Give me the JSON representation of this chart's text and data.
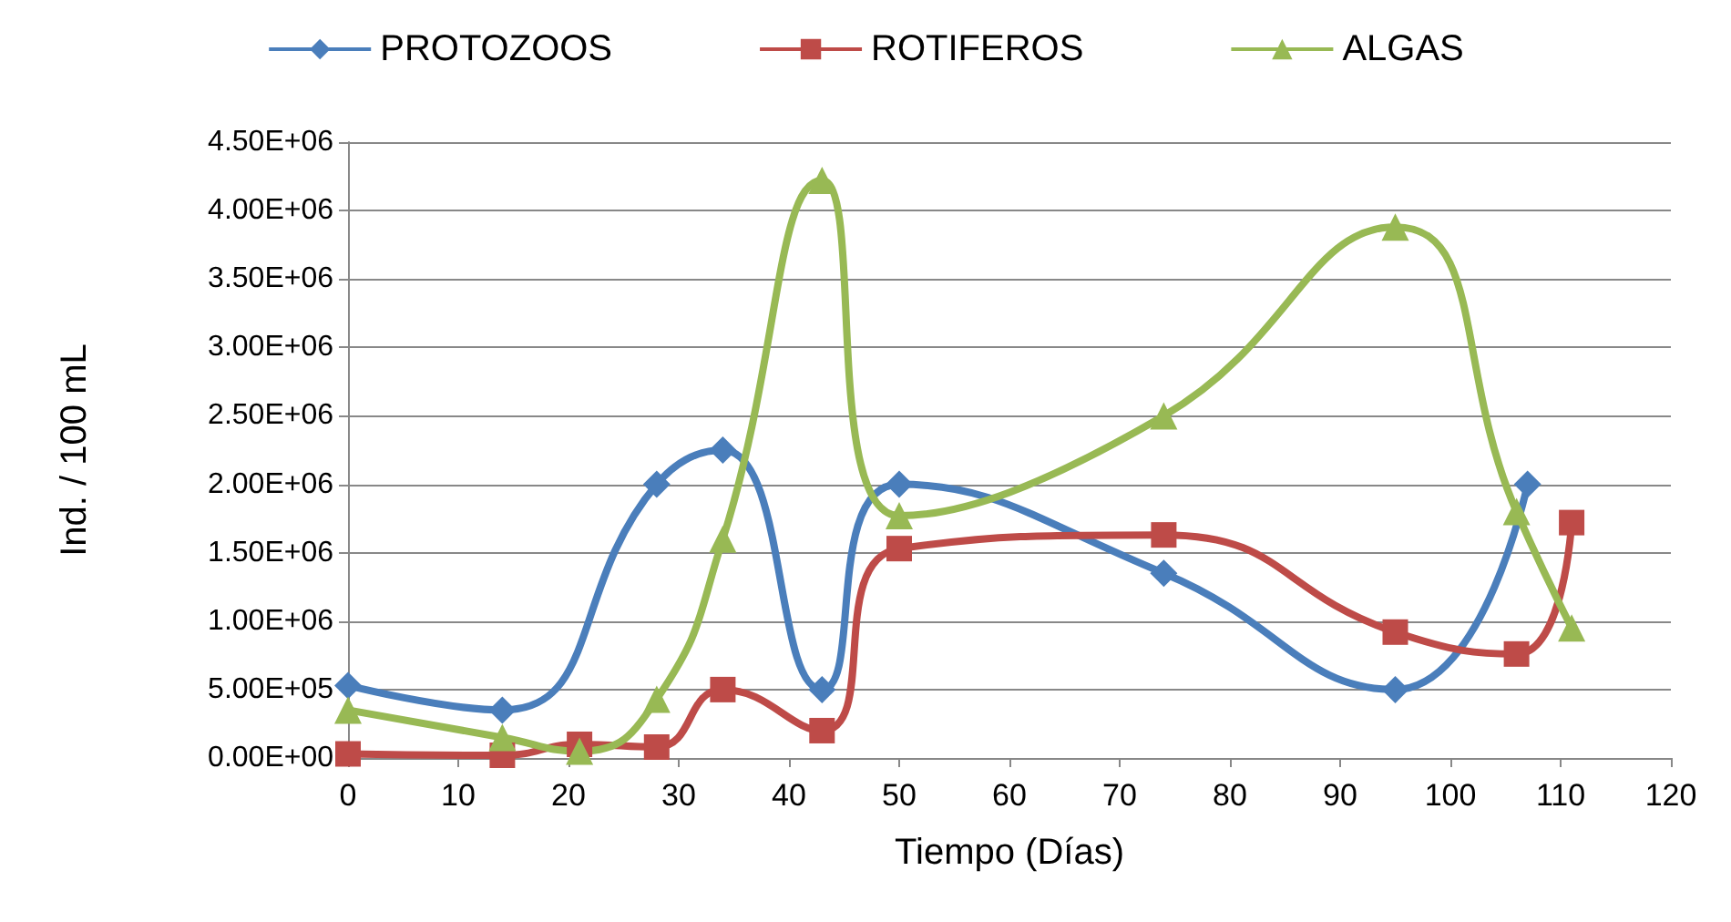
{
  "chart_data": {
    "type": "line",
    "xlabel": "Tiempo (Días)",
    "ylabel": "Ind. / 100 mL",
    "xlim": [
      0,
      120
    ],
    "xticks": [
      0,
      10,
      20,
      30,
      40,
      50,
      60,
      70,
      80,
      90,
      100,
      110,
      120
    ],
    "ylim": [
      0,
      4500000
    ],
    "yticks": [
      {
        "value": 0,
        "label": "0.00E+00"
      },
      {
        "value": 500000,
        "label": "5.00E+05"
      },
      {
        "value": 1000000,
        "label": "1.00E+06"
      },
      {
        "value": 1500000,
        "label": "1.50E+06"
      },
      {
        "value": 2000000,
        "label": "2.00E+06"
      },
      {
        "value": 2500000,
        "label": "2.50E+06"
      },
      {
        "value": 3000000,
        "label": "3.00E+06"
      },
      {
        "value": 3500000,
        "label": "3.50E+06"
      },
      {
        "value": 4000000,
        "label": "4.00E+06"
      },
      {
        "value": 4500000,
        "label": "4.50E+06"
      }
    ],
    "grid": "y",
    "legend": "top",
    "series": [
      {
        "name": "PROTOZOOS",
        "color": "#4a7ebb",
        "marker": "diamond",
        "x": [
          0,
          14,
          28,
          34,
          43,
          50,
          74,
          95,
          107
        ],
        "values": [
          530000,
          350000,
          2000000,
          2250000,
          500000,
          2000000,
          1350000,
          500000,
          2000000
        ]
      },
      {
        "name": "ROTIFEROS",
        "color": "#be4b48",
        "marker": "square",
        "x": [
          0,
          14,
          21,
          28,
          34,
          43,
          50,
          74,
          95,
          106,
          111
        ],
        "values": [
          30000,
          20000,
          100000,
          80000,
          500000,
          200000,
          1530000,
          1630000,
          920000,
          760000,
          1720000
        ]
      },
      {
        "name": "ALGAS",
        "color": "#98b954",
        "marker": "triangle",
        "x": [
          0,
          14,
          21,
          28,
          34,
          43,
          50,
          74,
          95,
          106,
          111
        ],
        "values": [
          350000,
          150000,
          50000,
          430000,
          1600000,
          4220000,
          1770000,
          2500000,
          3880000,
          1800000,
          950000
        ]
      }
    ]
  }
}
